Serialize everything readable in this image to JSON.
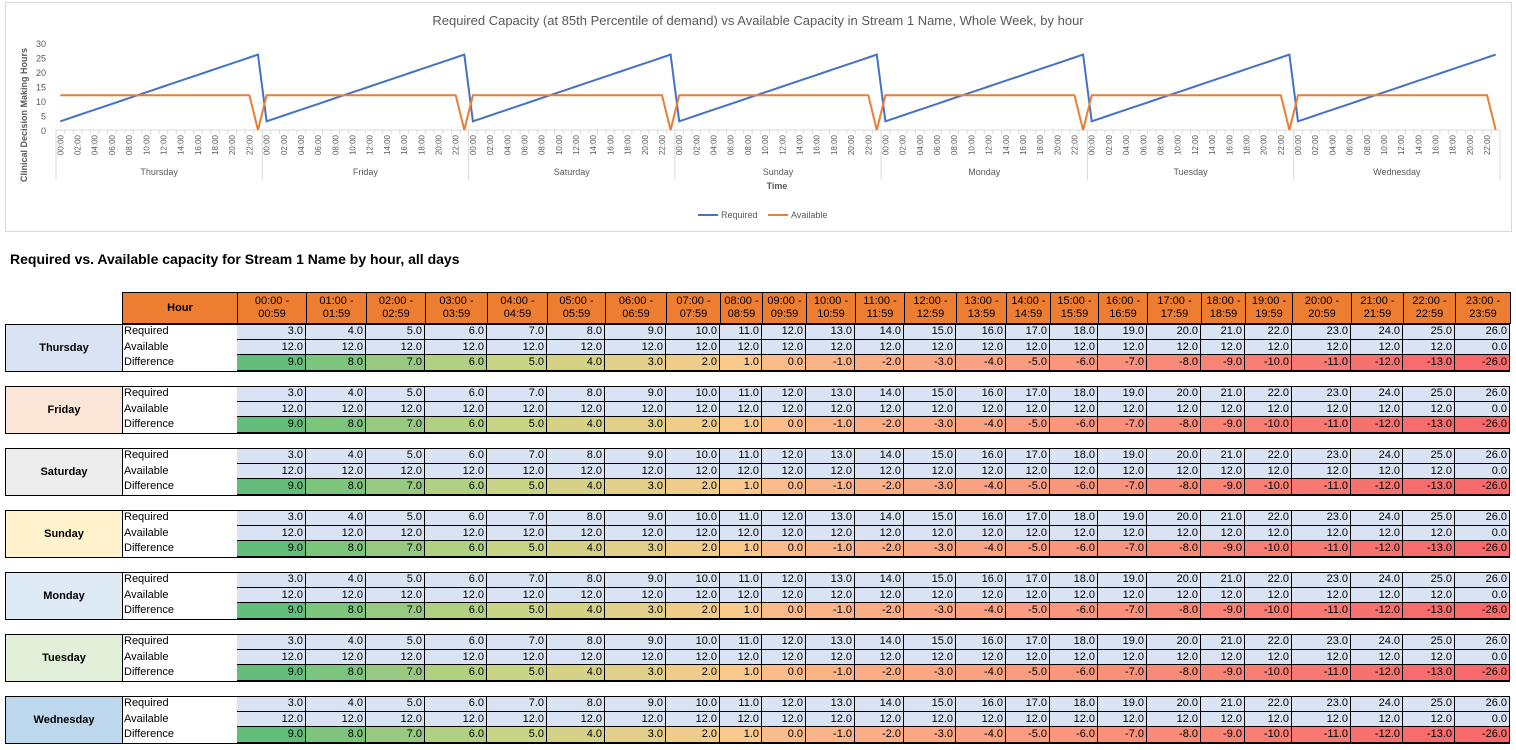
{
  "chart_data": {
    "type": "line",
    "title": "Required Capacity (at 85th Percentile of demand) vs Available Capacity in Stream 1 Name, Whole Week, by hour",
    "ylabel": "Clinical Decision Making Hours",
    "xlabel": "Time",
    "ylim": [
      0,
      30
    ],
    "yticks": [
      "0",
      "5",
      "10",
      "15",
      "20",
      "25",
      "30"
    ],
    "hour_ticks": [
      "00:00",
      "02:00",
      "04:00",
      "06:00",
      "08:00",
      "10:00",
      "12:00",
      "14:00",
      "16:00",
      "18:00",
      "20:00",
      "22:00"
    ],
    "days": [
      "Thursday",
      "Friday",
      "Saturday",
      "Sunday",
      "Monday",
      "Tuesday",
      "Wednesday"
    ],
    "grid": false,
    "legend_position": "bottom",
    "series": [
      {
        "name": "Required",
        "color": "#4472c4",
        "values": [
          3,
          4,
          5,
          6,
          7,
          8,
          9,
          10,
          11,
          12,
          13,
          14,
          15,
          16,
          17,
          18,
          19,
          20,
          21,
          22,
          23,
          24,
          25,
          26
        ]
      },
      {
        "name": "Available",
        "color": "#ed7d31",
        "values": [
          12,
          12,
          12,
          12,
          12,
          12,
          12,
          12,
          12,
          12,
          12,
          12,
          12,
          12,
          12,
          12,
          12,
          12,
          12,
          12,
          12,
          12,
          12,
          0
        ]
      }
    ]
  },
  "section_heading": "Required vs. Available capacity for Stream 1 Name by hour, all days",
  "table": {
    "hour_header": "Hour",
    "hours": [
      "00:00 - 00:59",
      "01:00 - 01:59",
      "02:00 - 02:59",
      "03:00 - 03:59",
      "04:00 - 04:59",
      "05:00 - 05:59",
      "06:00 - 06:59",
      "07:00 - 07:59",
      "08:00 - 08:59",
      "09:00 - 09:59",
      "10:00 - 10:59",
      "11:00 - 11:59",
      "12:00 - 12:59",
      "13:00 - 13:59",
      "14:00 - 14:59",
      "15:00 - 15:59",
      "16:00 - 16:59",
      "17:00 - 17:59",
      "18:00 - 18:59",
      "19:00 - 19:59",
      "20:00 - 20:59",
      "21:00 - 21:59",
      "22:00 - 22:59",
      "23:00 - 23:59"
    ],
    "row_labels": [
      "Required",
      "Available",
      "Difference"
    ],
    "days": [
      {
        "name": "Thursday",
        "color": "#dae3f3"
      },
      {
        "name": "Friday",
        "color": "#fbe5d6"
      },
      {
        "name": "Saturday",
        "color": "#ededed"
      },
      {
        "name": "Sunday",
        "color": "#fff2cc"
      },
      {
        "name": "Monday",
        "color": "#deebf7"
      },
      {
        "name": "Tuesday",
        "color": "#e2f0d9"
      },
      {
        "name": "Wednesday",
        "color": "#bdd7ee"
      }
    ],
    "required": [
      "3.0",
      "4.0",
      "5.0",
      "6.0",
      "7.0",
      "8.0",
      "9.0",
      "10.0",
      "11.0",
      "12.0",
      "13.0",
      "14.0",
      "15.0",
      "16.0",
      "17.0",
      "18.0",
      "19.0",
      "20.0",
      "21.0",
      "22.0",
      "23.0",
      "24.0",
      "25.0",
      "26.0"
    ],
    "available": [
      "12.0",
      "12.0",
      "12.0",
      "12.0",
      "12.0",
      "12.0",
      "12.0",
      "12.0",
      "12.0",
      "12.0",
      "12.0",
      "12.0",
      "12.0",
      "12.0",
      "12.0",
      "12.0",
      "12.0",
      "12.0",
      "12.0",
      "12.0",
      "12.0",
      "12.0",
      "12.0",
      "0.0"
    ],
    "difference": [
      "9.0",
      "8.0",
      "7.0",
      "6.0",
      "5.0",
      "4.0",
      "3.0",
      "2.0",
      "1.0",
      "0.0",
      "-1.0",
      "-2.0",
      "-3.0",
      "-4.0",
      "-5.0",
      "-6.0",
      "-7.0",
      "-8.0",
      "-9.0",
      "-10.0",
      "-11.0",
      "-12.0",
      "-13.0",
      "-26.0"
    ],
    "difference_colors": [
      "#63be7b",
      "#7dc47d",
      "#97ca80",
      "#b1d182",
      "#c7d584",
      "#d5d286",
      "#e2cf89",
      "#f0cc8b",
      "#fcc98d",
      "#fbbb8a",
      "#fbb487",
      "#fbae85",
      "#faa883",
      "#faa281",
      "#f99c7f",
      "#f9967c",
      "#f9907a",
      "#f88a78",
      "#f88476",
      "#f87e74",
      "#f87872",
      "#f7726f",
      "#f76c6d",
      "#f8696b"
    ]
  }
}
